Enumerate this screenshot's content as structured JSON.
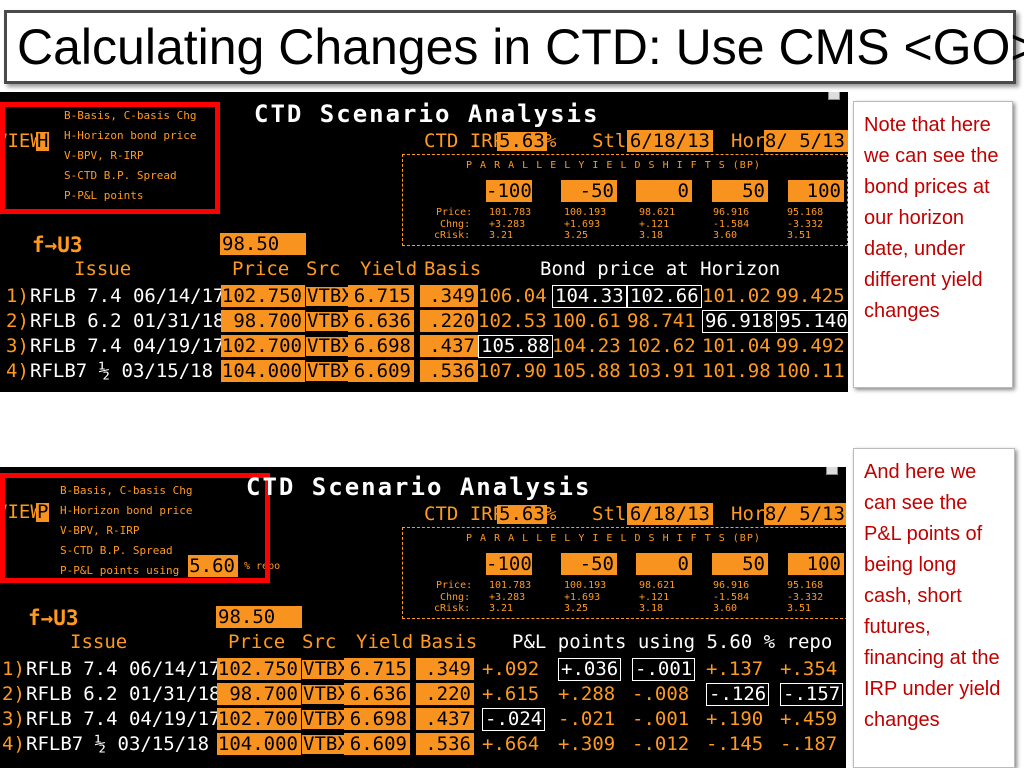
{
  "slide_title": "Calculating Changes in CTD: Use CMS <GO>",
  "panels": [
    {
      "menu": [
        "B-Basis,  C-basis Chg",
        "H-Horizon bond price",
        "V-BPV, R-IRP",
        "S-CTD B.P. Spread",
        "P-P&L points"
      ],
      "menu_suffix": "",
      "repo_value": "",
      "repo_label": "",
      "view_label": "VIEW",
      "view_key": "H",
      "screen_title": "CTD Scenario Analysis",
      "ctd_irp_label": "CTD IRP",
      "ctd_irp": "5.63",
      "pct": "%",
      "stl_label": "Stl",
      "stl": "6/18/13",
      "hor_label": "Hor",
      "hor": "8/ 5/13",
      "shift_header": "P A R A L L E L   Y I E L D   S H I F T S  (BP)",
      "shifts": [
        "-100",
        "-50",
        "0",
        "50",
        "100"
      ],
      "price_label": "Price:",
      "chng_label": "Chng:",
      "crisk_label": "cRisk:",
      "prices": [
        "101.783",
        "100.193",
        "98.621",
        "96.916",
        "95.168"
      ],
      "chngs": [
        "+3.283",
        "+1.693",
        "+.121",
        "-1.584",
        "-3.332"
      ],
      "crisks": [
        "3.21",
        "3.25",
        "3.18",
        "3.60",
        "3.51"
      ],
      "future": "f→U3",
      "future_price": "98.50",
      "col_issue": "Issue",
      "col_price": "Price",
      "col_src": "Src",
      "col_yield": "Yield",
      "col_basis": "Basis",
      "col_result": "Bond price at Horizon",
      "rows": [
        {
          "num": "1)",
          "issue": "RFLB 7.4 06/14/17",
          "price": "102.750",
          "src": "VTBX",
          "yield": "6.715",
          "basis": ".349",
          "vals": [
            "106.04",
            "104.33",
            "102.66",
            "101.02",
            "99.425"
          ],
          "boxed": [
            1,
            2
          ]
        },
        {
          "num": "2)",
          "issue": "RFLB 6.2 01/31/18",
          "price": "98.700",
          "src": "VTBX",
          "yield": "6.636",
          "basis": ".220",
          "vals": [
            "102.53",
            "100.61",
            "98.741",
            "96.918",
            "95.140"
          ],
          "boxed": [
            3,
            4
          ]
        },
        {
          "num": "3)",
          "issue": "RFLB 7.4 04/19/17",
          "price": "102.700",
          "src": "VTBX",
          "yield": "6.698",
          "basis": ".437",
          "vals": [
            "105.88",
            "104.23",
            "102.62",
            "101.04",
            "99.492"
          ],
          "boxed": [
            0
          ]
        },
        {
          "num": "4)",
          "issue": "RFLB7 ½  03/15/18",
          "price": "104.000",
          "src": "VTBX",
          "yield": "6.609",
          "basis": ".536",
          "vals": [
            "107.90",
            "105.88",
            "103.91",
            "101.98",
            "100.11"
          ],
          "boxed": []
        }
      ],
      "note": "Note that here we can see the bond prices at our horizon date, under different yield changes"
    },
    {
      "menu": [
        "B-Basis,  C-basis Chg",
        "H-Horizon bond price",
        "V-BPV, R-IRP",
        "S-CTD B.P. Spread",
        "P-P&L points using"
      ],
      "menu_suffix": "",
      "repo_value": "5.60",
      "repo_label": "% repo",
      "view_label": "VIEW",
      "view_key": "P",
      "screen_title": "CTD Scenario Analysis",
      "ctd_irp_label": "CTD IRP",
      "ctd_irp": "5.63",
      "pct": "%",
      "stl_label": "Stl",
      "stl": "6/18/13",
      "hor_label": "Hor",
      "hor": "8/ 5/13",
      "shift_header": "P A R A L L E L   Y I E L D   S H I F T S  (BP)",
      "shifts": [
        "-100",
        "-50",
        "0",
        "50",
        "100"
      ],
      "price_label": "Price:",
      "chng_label": "Chng:",
      "crisk_label": "cRisk:",
      "prices": [
        "101.783",
        "100.193",
        "98.621",
        "96.916",
        "95.168"
      ],
      "chngs": [
        "+3.283",
        "+1.693",
        "+.121",
        "-1.584",
        "-3.332"
      ],
      "crisks": [
        "3.21",
        "3.25",
        "3.18",
        "3.60",
        "3.51"
      ],
      "future": "f→U3",
      "future_price": "98.50",
      "col_issue": "Issue",
      "col_price": "Price",
      "col_src": "Src",
      "col_yield": "Yield",
      "col_basis": "Basis",
      "col_result": "P&L points using 5.60  % repo",
      "rows": [
        {
          "num": "1)",
          "issue": "RFLB 7.4 06/14/17",
          "price": "102.750",
          "src": "VTBX",
          "yield": "6.715",
          "basis": ".349",
          "vals": [
            "+.092",
            "+.036",
            "-.001",
            "+.137",
            "+.354"
          ],
          "boxed": [
            1,
            2
          ]
        },
        {
          "num": "2)",
          "issue": "RFLB 6.2 01/31/18",
          "price": "98.700",
          "src": "VTBX",
          "yield": "6.636",
          "basis": ".220",
          "vals": [
            "+.615",
            "+.288",
            "-.008",
            "-.126",
            "-.157"
          ],
          "boxed": [
            3,
            4
          ]
        },
        {
          "num": "3)",
          "issue": "RFLB 7.4 04/19/17",
          "price": "102.700",
          "src": "VTBX",
          "yield": "6.698",
          "basis": ".437",
          "vals": [
            "-.024",
            "-.021",
            "-.001",
            "+.190",
            "+.459"
          ],
          "boxed": [
            0
          ]
        },
        {
          "num": "4)",
          "issue": "RFLB7 ½  03/15/18",
          "price": "104.000",
          "src": "VTBX",
          "yield": "6.609",
          "basis": ".536",
          "vals": [
            "+.664",
            "+.309",
            "-.012",
            "-.145",
            "-.187"
          ],
          "boxed": []
        }
      ],
      "note": "And here we can see the P&L points of being long cash, short futures, financing at the IRP under yield changes"
    }
  ]
}
